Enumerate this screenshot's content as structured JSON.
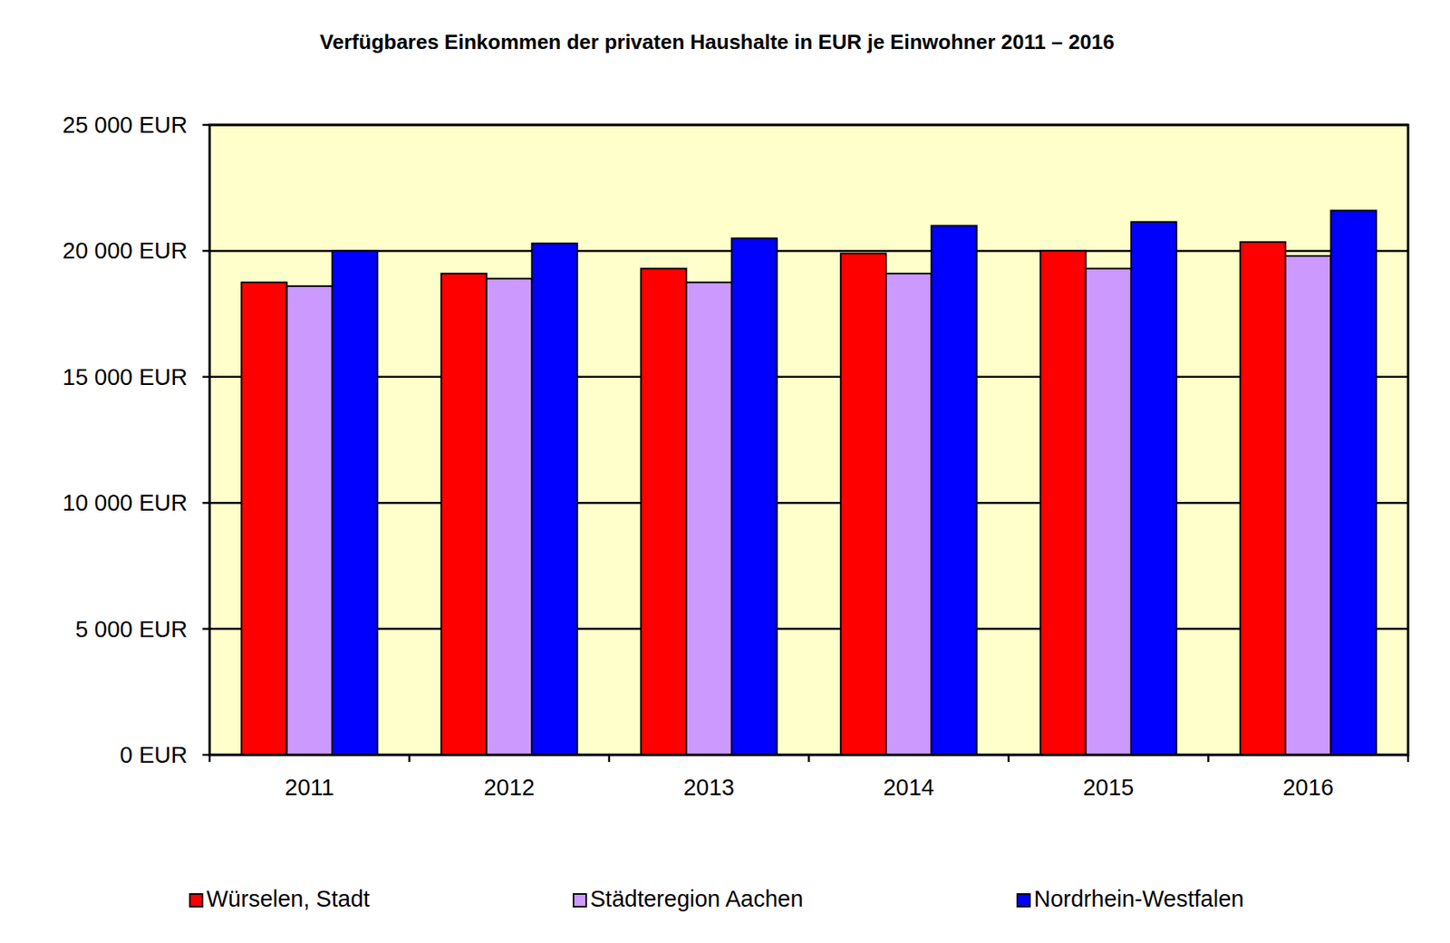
{
  "chart_data": {
    "type": "bar",
    "title": "Verfügbares Einkommen der privaten Haushalte in EUR je Einwohner 2011 – 2016",
    "categories": [
      "2011",
      "2012",
      "2013",
      "2014",
      "2015",
      "2016"
    ],
    "series": [
      {
        "name": "Würselen, Stadt",
        "color": "#ff0000",
        "values": [
          18750,
          19100,
          19300,
          19900,
          20000,
          20350
        ]
      },
      {
        "name": "Städteregion Aachen",
        "color": "#cc99ff",
        "values": [
          18600,
          18900,
          18750,
          19100,
          19300,
          19800
        ]
      },
      {
        "name": "Nordrhein-Westfalen",
        "color": "#0000ff",
        "values": [
          20000,
          20300,
          20500,
          21000,
          21150,
          21600
        ]
      }
    ],
    "ylim": [
      0,
      25000
    ],
    "yticks": [
      {
        "value": 0,
        "label": "0 EUR"
      },
      {
        "value": 5000,
        "label": "5 000 EUR"
      },
      {
        "value": 10000,
        "label": "10 000 EUR"
      },
      {
        "value": 15000,
        "label": "15 000 EUR"
      },
      {
        "value": 20000,
        "label": "20 000 EUR"
      },
      {
        "value": 25000,
        "label": "25 000 EUR"
      }
    ],
    "grid": true,
    "legend": "bottom"
  }
}
